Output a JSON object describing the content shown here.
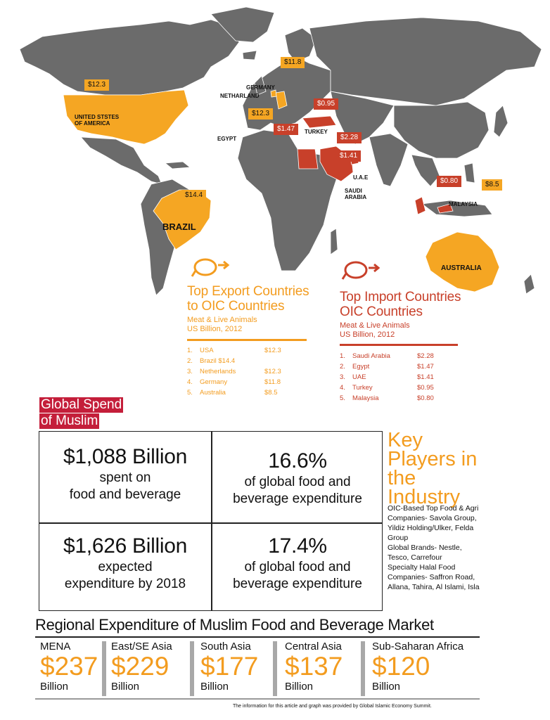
{
  "map": {
    "labels": {
      "usa": "UNITED STSTES\nOF AMERICA",
      "brazil": "BRAZIL",
      "australia": "AUSTRALIA",
      "germany": "GERMANY",
      "netherland": "NETHARLAND",
      "egypt": "EGYPT",
      "turkey": "TURKEY",
      "uae": "U.A.E",
      "saudi": "SAUDI\nARABIA",
      "malaysia": "MALAYSIA"
    },
    "export_flags": {
      "usa": "$12.3",
      "germany": "$11.8",
      "netherland": "$12.3",
      "brazil": "$14.4",
      "australia": "$8.5"
    },
    "import_flags": {
      "turkey": "$0.95",
      "egypt": "$1.47",
      "saudi": "$2.28",
      "uae": "$1.41",
      "malaysia": "$0.80"
    },
    "colors": {
      "land": "#6b6b6b",
      "export": "#f5a623",
      "import": "#c8402a"
    }
  },
  "export_section": {
    "title_line1": "Top Export Countries",
    "title_line2": "to OIC Countries",
    "sub1": "Meat & Live Animals",
    "sub2": "US Billion, 2012",
    "items": [
      {
        "num": "1.",
        "name": "USA",
        "value": "$12.3"
      },
      {
        "num": "2.",
        "name": "Brazil $14.4",
        "value": ""
      },
      {
        "num": "3.",
        "name": "Netherlands",
        "value": "$12.3"
      },
      {
        "num": "4.",
        "name": "Germany",
        "value": "$11.8"
      },
      {
        "num": "5.",
        "name": "Australia",
        "value": "$8.5"
      }
    ]
  },
  "import_section": {
    "title_line1": "Top Import Countries",
    "title_line2": "OIC Countries",
    "sub1": "Meat & Live Animals",
    "sub2": "US Billion, 2012",
    "items": [
      {
        "num": "1.",
        "name": "Saudi Arabia",
        "value": "$2.28"
      },
      {
        "num": "2.",
        "name": "Egypt",
        "value": "$1.47"
      },
      {
        "num": "3.",
        "name": "UAE",
        "value": "$1.41"
      },
      {
        "num": "4.",
        "name": "Turkey",
        "value": "$0.95"
      },
      {
        "num": "5.",
        "name": "Malaysia",
        "value": "$0.80"
      }
    ]
  },
  "global_spend": {
    "title_line1": "Global Spend",
    "title_line2": "of Muslim",
    "cells": [
      {
        "big": "$1,088 Billion",
        "line1": "spent on",
        "line2": "food and beverage"
      },
      {
        "big": "16.6%",
        "line1": "of global food and",
        "line2": "beverage expenditure"
      },
      {
        "big": "$1,626 Billion",
        "line1": "expected",
        "line2": "expenditure by 2018"
      },
      {
        "big": "17.4%",
        "line1": "of global food and",
        "line2": "beverage expenditure"
      }
    ]
  },
  "key_players": {
    "title_line1": "Key",
    "title_line2": "Players in",
    "title_line3": "the",
    "title_line4": "Industry",
    "body": "OIC-Based Top Food & Agri Companies- Savola Group, Yildiz Holding/Ulker, Felda Group\nGlobal Brands- Nestle, Tesco, Carrefour\nSpecialty Halal Food Companies- Saffron Road, Allana, Tahira, Al Islami, Isla"
  },
  "regional": {
    "title": "Regional Expenditure of Muslim Food and Beverage Market",
    "unit": "Billion",
    "regions": [
      {
        "name": "MENA",
        "value": "$237",
        "unit": "Billion"
      },
      {
        "name": "East/SE Asia",
        "value": "$229",
        "unit": "Billion"
      },
      {
        "name": "South Asia",
        "value": "$177",
        "unit": "Billion"
      },
      {
        "name": "Central Asia",
        "value": "$137",
        "unit": "Billion"
      },
      {
        "name": "Sub-Saharan Africa",
        "value": "$120",
        "unit": "Billion"
      }
    ]
  },
  "footnote": "The information for this article and graph was provided by Global Islamic Economy Summit."
}
